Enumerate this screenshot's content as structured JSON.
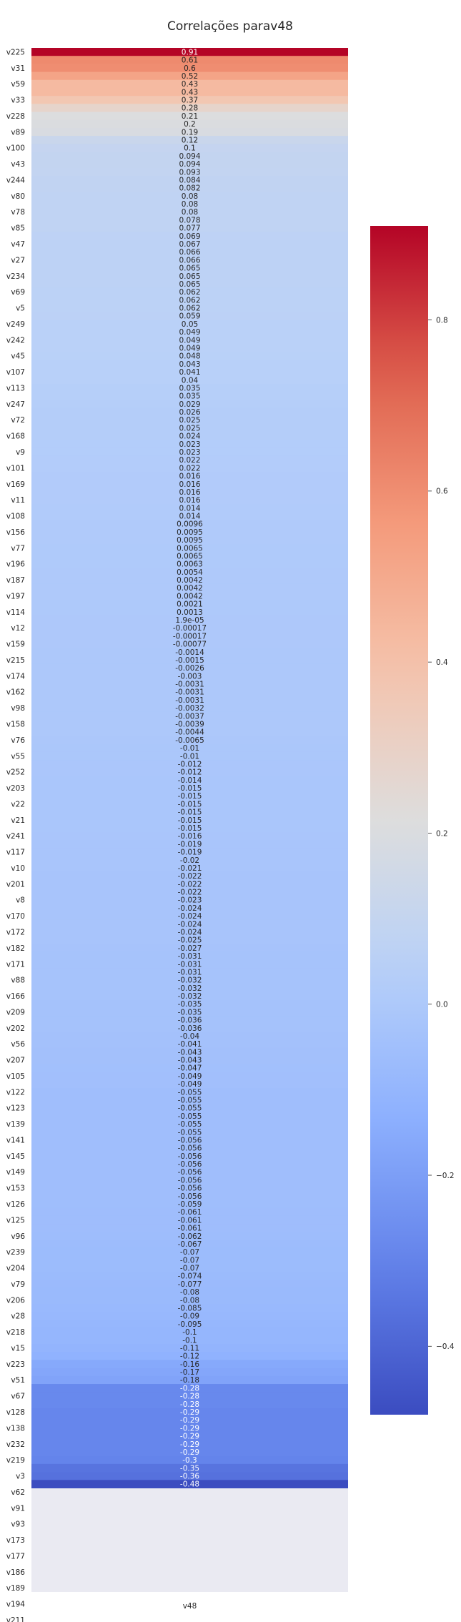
{
  "chart_data": {
    "type": "heatmap",
    "title": "Correlações parav48",
    "x_categories": [
      "v48"
    ],
    "colormap": "coolwarm",
    "vmin": -0.48,
    "vmax": 0.91,
    "colorbar_ticks": [
      0.8,
      0.6,
      0.4,
      0.2,
      0.0,
      -0.2,
      -0.4
    ],
    "colorbar_tick_labels": [
      "0.8",
      "0.6",
      "0.4",
      "0.2",
      "0.0",
      "−0.2",
      "−0.4"
    ],
    "annotations": [
      "0.91",
      "0.61",
      "0.6",
      "0.52",
      "0.43",
      "0.43",
      "0.37",
      "0.28",
      "0.21",
      "0.2",
      "0.19",
      "0.12",
      "0.1",
      "0.094",
      "0.094",
      "0.093",
      "0.084",
      "0.082",
      "0.08",
      "0.08",
      "0.08",
      "0.078",
      "0.077",
      "0.069",
      "0.067",
      "0.066",
      "0.066",
      "0.065",
      "0.065",
      "0.065",
      "0.062",
      "0.062",
      "0.062",
      "0.059",
      "0.05",
      "0.049",
      "0.049",
      "0.049",
      "0.048",
      "0.043",
      "0.041",
      "0.04",
      "0.035",
      "0.035",
      "0.029",
      "0.026",
      "0.025",
      "0.025",
      "0.024",
      "0.023",
      "0.023",
      "0.022",
      "0.022",
      "0.016",
      "0.016",
      "0.016",
      "0.016",
      "0.014",
      "0.014",
      "0.0096",
      "0.0095",
      "0.0095",
      "0.0065",
      "0.0065",
      "0.0063",
      "0.0054",
      "0.0042",
      "0.0042",
      "0.0042",
      "0.0021",
      "0.0013",
      "1.9e-05",
      "-0.00017",
      "-0.00017",
      "-0.00077",
      "-0.0014",
      "-0.0015",
      "-0.0026",
      "-0.003",
      "-0.0031",
      "-0.0031",
      "-0.0031",
      "-0.0032",
      "-0.0037",
      "-0.0039",
      "-0.0044",
      "-0.0065",
      "-0.01",
      "-0.01",
      "-0.012",
      "-0.012",
      "-0.014",
      "-0.015",
      "-0.015",
      "-0.015",
      "-0.015",
      "-0.015",
      "-0.015",
      "-0.016",
      "-0.019",
      "-0.019",
      "-0.02",
      "-0.021",
      "-0.022",
      "-0.022",
      "-0.022",
      "-0.023",
      "-0.024",
      "-0.024",
      "-0.024",
      "-0.024",
      "-0.025",
      "-0.027",
      "-0.031",
      "-0.031",
      "-0.031",
      "-0.032",
      "-0.032",
      "-0.032",
      "-0.035",
      "-0.035",
      "-0.036",
      "-0.036",
      "-0.04",
      "-0.041",
      "-0.043",
      "-0.043",
      "-0.047",
      "-0.049",
      "-0.049",
      "-0.055",
      "-0.055",
      "-0.055",
      "-0.055",
      "-0.055",
      "-0.055",
      "-0.056",
      "-0.056",
      "-0.056",
      "-0.056",
      "-0.056",
      "-0.056",
      "-0.056",
      "-0.056",
      "-0.059",
      "-0.061",
      "-0.061",
      "-0.061",
      "-0.062",
      "-0.067",
      "-0.07",
      "-0.07",
      "-0.07",
      "-0.074",
      "-0.077",
      "-0.08",
      "-0.08",
      "-0.085",
      "-0.09",
      "-0.095",
      "-0.1",
      "-0.1",
      "-0.11",
      "-0.12",
      "-0.16",
      "-0.17",
      "-0.18",
      "-0.28",
      "-0.28",
      "-0.28",
      "-0.29",
      "-0.29",
      "-0.29",
      "-0.29",
      "-0.29",
      "-0.29",
      "-0.3",
      "-0.35",
      "-0.36",
      "-0.48",
      "",
      "",
      "",
      "",
      "",
      "",
      "",
      "",
      "",
      "",
      "",
      "",
      ""
    ],
    "y_tick_labels": [
      "v225",
      "v31",
      "v59",
      "v33",
      "v228",
      "v89",
      "v100",
      "v43",
      "v244",
      "v80",
      "v78",
      "v85",
      "v47",
      "v27",
      "v234",
      "v69",
      "v5",
      "v249",
      "v242",
      "v45",
      "v107",
      "v113",
      "v247",
      "v72",
      "v168",
      "v9",
      "v101",
      "v169",
      "v11",
      "v108",
      "v156",
      "v77",
      "v196",
      "v187",
      "v197",
      "v114",
      "v12",
      "v159",
      "v215",
      "v174",
      "v162",
      "v98",
      "v158",
      "v76",
      "v55",
      "v252",
      "v203",
      "v22",
      "v21",
      "v241",
      "v117",
      "v10",
      "v201",
      "v8",
      "v170",
      "v172",
      "v182",
      "v171",
      "v88",
      "v166",
      "v209",
      "v202",
      "v56",
      "v207",
      "v105",
      "v122",
      "v123",
      "v139",
      "v141",
      "v145",
      "v149",
      "v153",
      "v126",
      "v125",
      "v96",
      "v239",
      "v204",
      "v79",
      "v206",
      "v28",
      "v218",
      "v15",
      "v223",
      "v51",
      "v67",
      "v128",
      "v138",
      "v232",
      "v219",
      "v3",
      "v62",
      "v91",
      "v93",
      "v173",
      "v177",
      "v186",
      "v189",
      "v194",
      "v211"
    ],
    "y_tick_row_index": [
      0,
      2,
      4,
      6,
      8,
      10,
      12,
      14,
      16,
      18,
      20,
      22,
      24,
      26,
      28,
      30,
      32,
      34,
      36,
      38,
      40,
      42,
      44,
      46,
      48,
      50,
      52,
      54,
      56,
      58,
      60,
      62,
      64,
      66,
      68,
      70,
      72,
      74,
      76,
      78,
      80,
      82,
      84,
      86,
      88,
      90,
      92,
      94,
      96,
      98,
      100,
      102,
      104,
      106,
      108,
      110,
      112,
      114,
      116,
      118,
      120,
      122,
      124,
      126,
      128,
      130,
      132,
      134,
      136,
      138,
      140,
      142,
      144,
      146,
      148,
      150,
      152,
      154,
      156,
      158,
      160,
      162,
      164,
      166,
      168,
      170,
      172,
      174,
      176,
      178,
      180,
      182,
      184,
      186,
      188,
      190,
      192,
      194,
      196
    ],
    "xlabel": "",
    "ylabel": ""
  }
}
